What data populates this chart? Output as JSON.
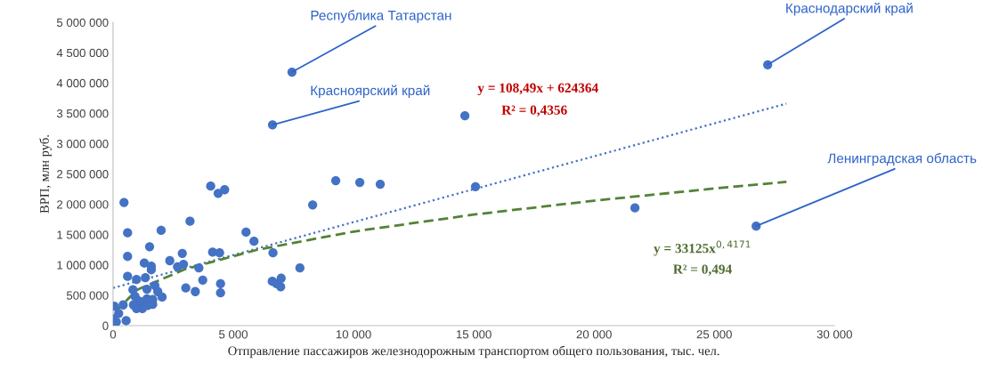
{
  "chart_data": {
    "type": "scatter",
    "xlabel": "Отправление пассажиров железнодорожным транспортом общего пользования, тыс. чел.",
    "ylabel": "ВРП, млн руб.",
    "xlim": [
      0,
      30000
    ],
    "ylim": [
      0,
      5000000
    ],
    "xticks": [
      0,
      {
        "value": 5000,
        "label": "5 000"
      },
      {
        "value": 10000,
        "label": "10 000"
      },
      {
        "value": 15000,
        "label": "15 000"
      },
      {
        "value": 20000,
        "label": "20 000"
      },
      {
        "value": 25000,
        "label": "25 000"
      },
      {
        "value": 30000,
        "label": "30 000"
      }
    ],
    "yticks": [
      0,
      {
        "value": 500000,
        "label": "500 000"
      },
      {
        "value": 1000000,
        "label": "1 000 000"
      },
      {
        "value": 1500000,
        "label": "1 500 000"
      },
      {
        "value": 2000000,
        "label": "2 000 000"
      },
      {
        "value": 2500000,
        "label": "2 500 000"
      },
      {
        "value": 3000000,
        "label": "3 000 000"
      },
      {
        "value": 3500000,
        "label": "3 500 000"
      },
      {
        "value": 4000000,
        "label": "4 000 000"
      },
      {
        "value": 4500000,
        "label": "4 500 000"
      },
      {
        "value": 5000000,
        "label": "5 000 000"
      }
    ],
    "grid": false,
    "legend": false,
    "series": [
      {
        "color": "#4472c4",
        "marker": "circle",
        "x": [
          7440,
          27220,
          6630,
          14630,
          15070,
          21700,
          26740,
          10260,
          9260,
          11110,
          8300,
          4060,
          4370,
          4640,
          456,
          605,
          2000,
          3200,
          1520,
          605,
          1300,
          1590,
          1590,
          2360,
          2880,
          2680,
          2930,
          3570,
          4140,
          4430,
          5530,
          5860,
          6650,
          7770,
          6620,
          6800,
          6990,
          6970,
          605,
          975,
          1345,
          3730,
          3025,
          3420,
          4470,
          4470,
          827,
          1410,
          1740,
          1860,
          2040,
          913,
          1040,
          1200,
          1410,
          1650,
          1650,
          1440,
          1220,
          975,
          850,
          420,
          50,
          235,
          10,
          545,
          137
        ],
        "values": [
          4180000,
          4300000,
          3310000,
          3460000,
          2290000,
          1940000,
          1640000,
          2360000,
          2390000,
          2330000,
          1990000,
          2300000,
          2180000,
          2240000,
          2030000,
          1530000,
          1570000,
          1720000,
          1300000,
          1140000,
          1030000,
          980000,
          920000,
          1070000,
          1190000,
          970000,
          1010000,
          950000,
          1210000,
          1200000,
          1540000,
          1390000,
          1200000,
          950000,
          730000,
          690000,
          780000,
          640000,
          810000,
          760000,
          790000,
          750000,
          620000,
          560000,
          690000,
          540000,
          590000,
          600000,
          660000,
          560000,
          470000,
          480000,
          410000,
          390000,
          440000,
          430000,
          350000,
          330000,
          280000,
          280000,
          340000,
          340000,
          320000,
          200000,
          110000,
          80000,
          60000
        ]
      },
      {
        "type": "line",
        "color": "#4472c4",
        "line_style": "dotted",
        "marker": "none",
        "x": [
          0,
          28000
        ],
        "values": [
          620000,
          3660000
        ]
      },
      {
        "type": "line",
        "color": "#548235",
        "line_style": "dashed",
        "marker": "none",
        "x": [
          100,
          1000,
          3000,
          6000,
          10000,
          15000,
          20000,
          25000,
          28000
        ],
        "values": [
          230000,
          590000,
          930000,
          1250000,
          1550000,
          1830000,
          2060000,
          2260000,
          2370000
        ]
      }
    ],
    "annotations": [
      {
        "text": "Республика Татарстан",
        "x": 7440,
        "y": 4180000
      },
      {
        "text": "Красноярский край",
        "x": 6630,
        "y": 3310000
      },
      {
        "text": "Краснодарский край",
        "x": 27220,
        "y": 4300000
      },
      {
        "text": "Ленинградская область",
        "x": 26740,
        "y": 1640000
      },
      "y = 108,49x + 624364",
      "R² = 0,4356",
      "y = 33125x$^{0,4171}$",
      "R² = 0,494"
    ]
  }
}
